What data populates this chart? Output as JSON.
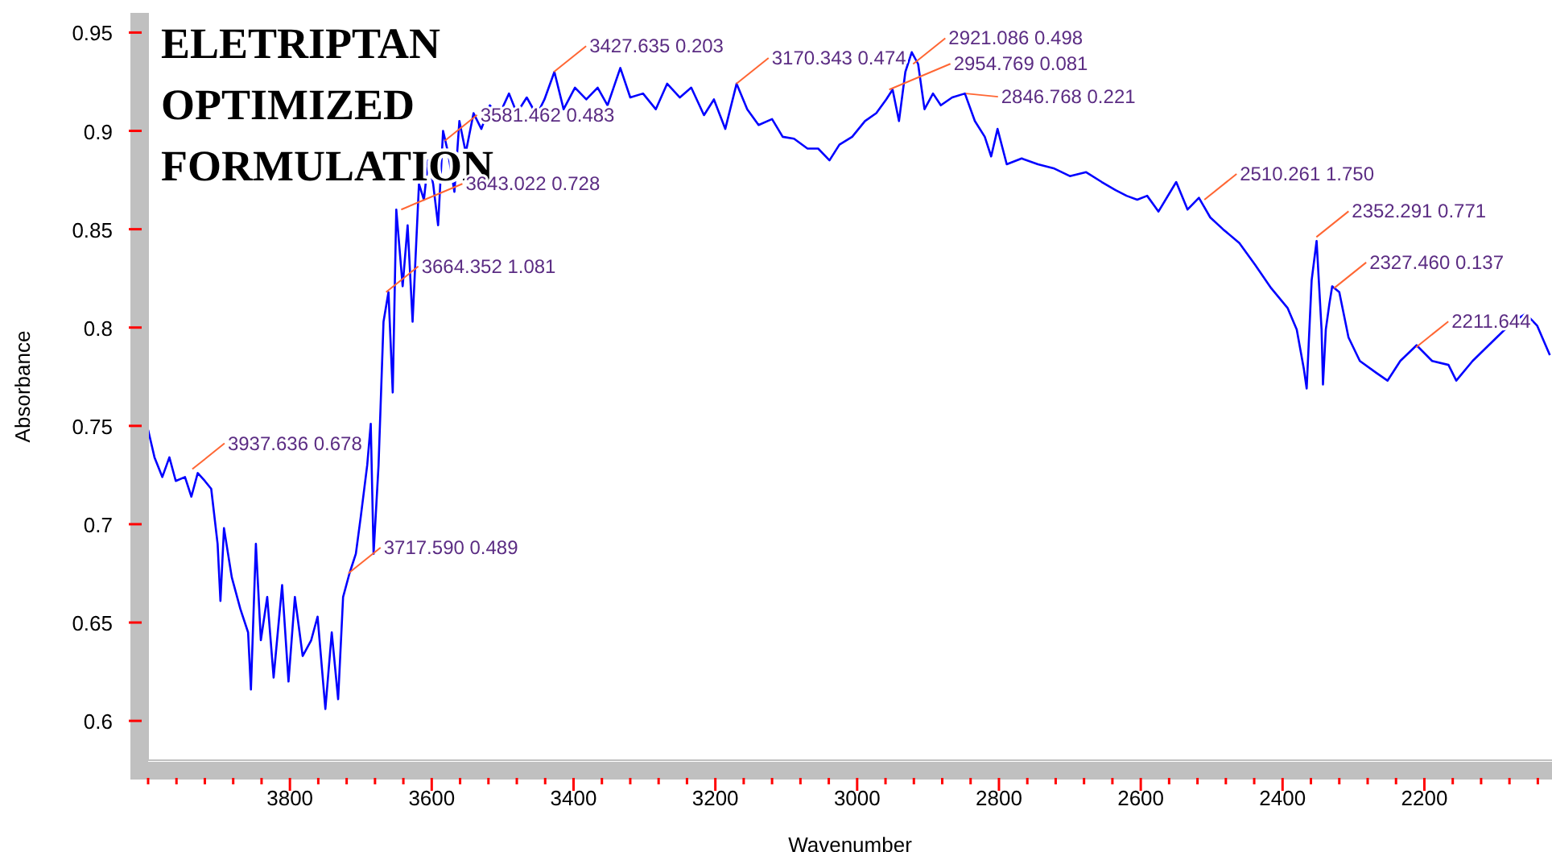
{
  "chart_data": {
    "type": "line",
    "title": "ELETRIPTAN OPTIMIZED FORMULATION",
    "xlabel": "Wavenumber",
    "ylabel": "Absorbance",
    "color": "#0000ff",
    "x": [
      4000,
      3991,
      3980,
      3970,
      3961,
      3948,
      3939,
      3930,
      3920,
      3911,
      3902,
      3898,
      3893,
      3882,
      3870,
      3859,
      3855,
      3848,
      3841,
      3832,
      3823,
      3811,
      3802,
      3793,
      3782,
      3770,
      3761,
      3750,
      3741,
      3732,
      3725,
      3716,
      3707,
      3700,
      3691,
      3686,
      3682,
      3675,
      3668,
      3661,
      3655,
      3650,
      3641,
      3634,
      3627,
      3618,
      3611,
      3605,
      3598,
      3591,
      3584,
      3577,
      3568,
      3561,
      3552,
      3541,
      3530,
      3518,
      3505,
      3491,
      3480,
      3466,
      3452,
      3441,
      3427,
      3414,
      3398,
      3382,
      3366,
      3352,
      3334,
      3320,
      3302,
      3284,
      3268,
      3250,
      3234,
      3216,
      3202,
      3186,
      3170,
      3155,
      3139,
      3120,
      3105,
      3089,
      3070,
      3055,
      3039,
      3025,
      3007,
      2989,
      2973,
      2959,
      2950,
      2941,
      2932,
      2923,
      2914,
      2905,
      2893,
      2882,
      2866,
      2848,
      2834,
      2820,
      2811,
      2802,
      2789,
      2768,
      2745,
      2723,
      2700,
      2677,
      2655,
      2636,
      2620,
      2605,
      2591,
      2575,
      2550,
      2534,
      2518,
      2502,
      2484,
      2461,
      2439,
      2416,
      2393,
      2380,
      2370,
      2366,
      2359,
      2352,
      2345,
      2343,
      2339,
      2334,
      2330,
      2320,
      2307,
      2291,
      2268,
      2252,
      2234,
      2211,
      2189,
      2166,
      2155,
      2132,
      2098,
      2075,
      2057,
      2041,
      2023
    ],
    "values": [
      0.748,
      0.734,
      0.724,
      0.734,
      0.722,
      0.724,
      0.714,
      0.726,
      0.722,
      0.718,
      0.69,
      0.661,
      0.698,
      0.673,
      0.657,
      0.645,
      0.616,
      0.69,
      0.641,
      0.663,
      0.622,
      0.669,
      0.62,
      0.663,
      0.633,
      0.641,
      0.653,
      0.606,
      0.645,
      0.611,
      0.663,
      0.675,
      0.685,
      0.704,
      0.73,
      0.751,
      0.685,
      0.73,
      0.803,
      0.818,
      0.767,
      0.86,
      0.821,
      0.852,
      0.803,
      0.873,
      0.865,
      0.885,
      0.873,
      0.852,
      0.9,
      0.889,
      0.869,
      0.905,
      0.889,
      0.909,
      0.901,
      0.913,
      0.908,
      0.919,
      0.909,
      0.917,
      0.908,
      0.916,
      0.93,
      0.911,
      0.922,
      0.916,
      0.922,
      0.913,
      0.932,
      0.917,
      0.919,
      0.911,
      0.924,
      0.917,
      0.922,
      0.908,
      0.916,
      0.901,
      0.924,
      0.911,
      0.903,
      0.906,
      0.897,
      0.896,
      0.891,
      0.891,
      0.885,
      0.893,
      0.897,
      0.905,
      0.909,
      0.916,
      0.921,
      0.905,
      0.93,
      0.94,
      0.934,
      0.911,
      0.919,
      0.913,
      0.917,
      0.919,
      0.905,
      0.897,
      0.887,
      0.901,
      0.883,
      0.886,
      0.883,
      0.881,
      0.877,
      0.879,
      0.874,
      0.87,
      0.867,
      0.865,
      0.867,
      0.859,
      0.874,
      0.86,
      0.866,
      0.856,
      0.85,
      0.843,
      0.832,
      0.82,
      0.81,
      0.799,
      0.779,
      0.769,
      0.824,
      0.844,
      0.799,
      0.771,
      0.799,
      0.812,
      0.821,
      0.818,
      0.795,
      0.783,
      0.777,
      0.773,
      0.783,
      0.791,
      0.783,
      0.781,
      0.773,
      0.783,
      0.795,
      0.803,
      0.807,
      0.801,
      0.786
    ],
    "xlim": [
      4000,
      2020
    ],
    "ylim": [
      0.58,
      0.96
    ],
    "xticks": [
      {
        "value": 4000,
        "label": null
      },
      {
        "value": 3960,
        "label": null
      },
      {
        "value": 3920,
        "label": null
      },
      {
        "value": 3880,
        "label": null
      },
      {
        "value": 3840,
        "label": null
      },
      3800,
      {
        "value": 3760,
        "label": null
      },
      {
        "value": 3720,
        "label": null
      },
      {
        "value": 3680,
        "label": null
      },
      {
        "value": 3640,
        "label": null
      },
      3600,
      {
        "value": 3560,
        "label": null
      },
      {
        "value": 3520,
        "label": null
      },
      {
        "value": 3480,
        "label": null
      },
      {
        "value": 3440,
        "label": null
      },
      3400,
      {
        "value": 3360,
        "label": null
      },
      {
        "value": 3320,
        "label": null
      },
      {
        "value": 3280,
        "label": null
      },
      {
        "value": 3240,
        "label": null
      },
      3200,
      {
        "value": 3160,
        "label": null
      },
      {
        "value": 3120,
        "label": null
      },
      {
        "value": 3080,
        "label": null
      },
      {
        "value": 3040,
        "label": null
      },
      3000,
      {
        "value": 2960,
        "label": null
      },
      {
        "value": 2920,
        "label": null
      },
      {
        "value": 2880,
        "label": null
      },
      {
        "value": 2840,
        "label": null
      },
      2800,
      {
        "value": 2760,
        "label": null
      },
      {
        "value": 2720,
        "label": null
      },
      {
        "value": 2680,
        "label": null
      },
      {
        "value": 2640,
        "label": null
      },
      2600,
      {
        "value": 2560,
        "label": null
      },
      {
        "value": 2520,
        "label": null
      },
      {
        "value": 2480,
        "label": null
      },
      {
        "value": 2440,
        "label": null
      },
      2400,
      {
        "value": 2360,
        "label": null
      },
      {
        "value": 2320,
        "label": null
      },
      {
        "value": 2280,
        "label": null
      },
      {
        "value": 2240,
        "label": null
      },
      2200,
      {
        "value": 2160,
        "label": null
      },
      {
        "value": 2120,
        "label": null
      },
      {
        "value": 2080,
        "label": null
      },
      {
        "value": 2040,
        "label": null
      }
    ],
    "yticks": [
      0.6,
      0.65,
      0.7,
      0.75,
      0.8,
      0.85,
      0.9,
      0.95
    ],
    "annotations": [
      {
        "text": "3937.636  0.678",
        "x": 3937.636,
        "y": 0.728
      },
      {
        "text": "3717.590  0.489",
        "x": 3717.59,
        "y": 0.675
      },
      {
        "text": "3664.352  1.081",
        "x": 3664.352,
        "y": 0.818
      },
      {
        "text": "3643.022  0.728",
        "x": 3643.022,
        "y": 0.86
      },
      {
        "text": "3581.462  0.483",
        "x": 3581.462,
        "y": 0.895
      },
      {
        "text": "3427.635  0.203",
        "x": 3427.635,
        "y": 0.93
      },
      {
        "text": "3170.343  0.474",
        "x": 3170.343,
        "y": 0.924
      },
      {
        "text": "2921.086  0.498",
        "x": 2921.086,
        "y": 0.934
      },
      {
        "text": "2954.769  0.081",
        "x": 2954.769,
        "y": 0.921
      },
      {
        "text": "2846.768  0.221",
        "x": 2846.768,
        "y": 0.919
      },
      {
        "text": "2510.261  1.750",
        "x": 2510.261,
        "y": 0.865
      },
      {
        "text": "2352.291  0.771",
        "x": 2352.291,
        "y": 0.846
      },
      {
        "text": "2327.460  0.137",
        "x": 2327.46,
        "y": 0.82
      },
      {
        "text": "2211.644",
        "x": 2211.644,
        "y": 0.79
      }
    ]
  }
}
